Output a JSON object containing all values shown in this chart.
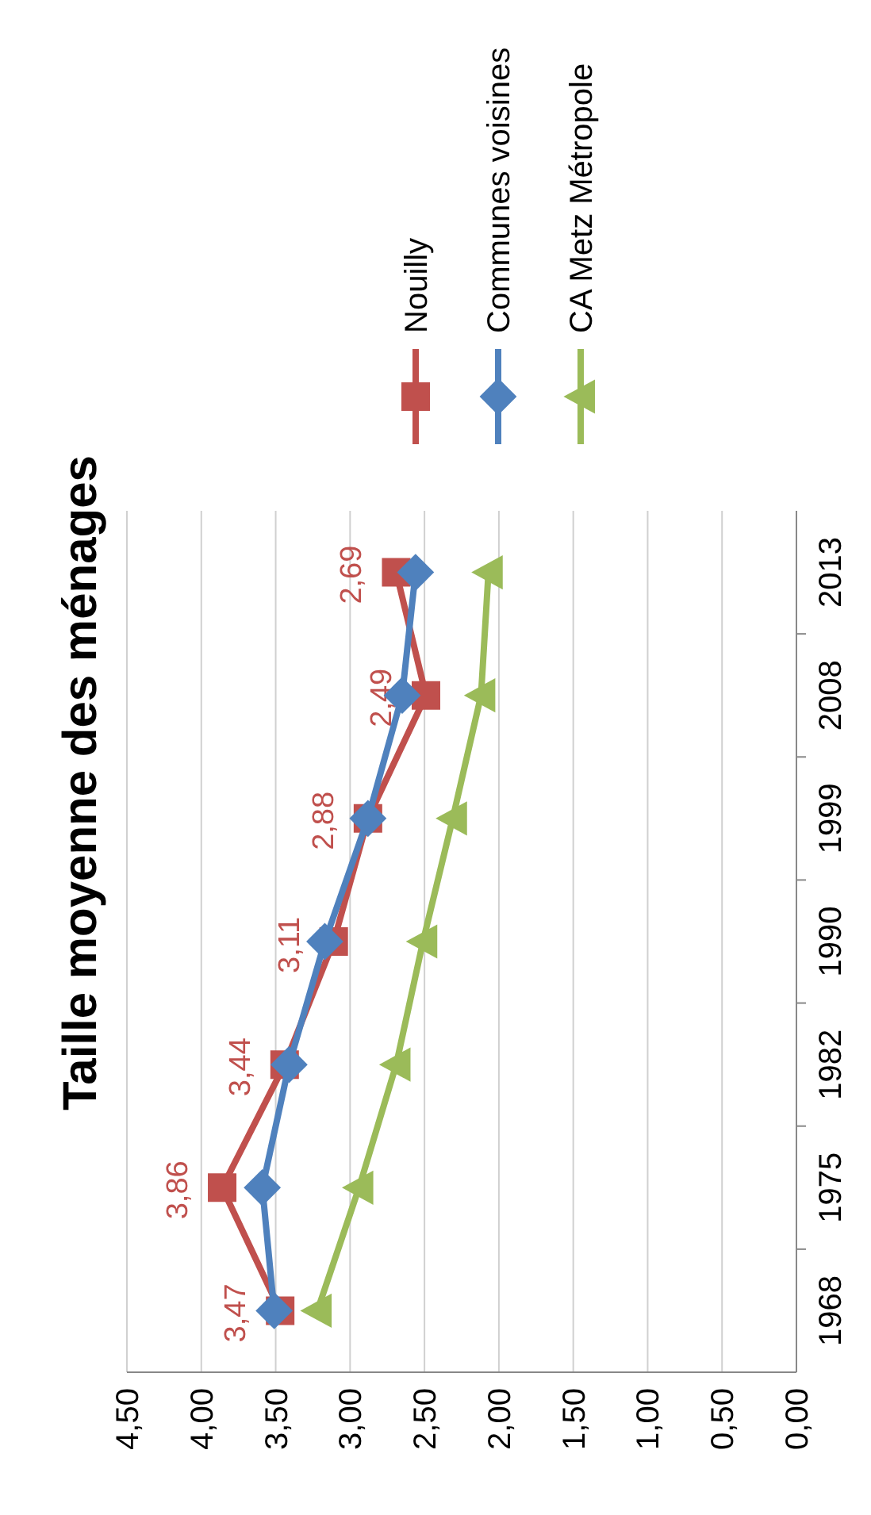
{
  "chart_data": {
    "type": "line",
    "title": "Taille moyenne des ménages",
    "orientation": "horizontal",
    "categories": [
      "2013",
      "2008",
      "1999",
      "1990",
      "1982",
      "1975",
      "1968"
    ],
    "series": [
      {
        "name": "Nouilly",
        "color": "#c0504d",
        "marker": "square",
        "values": [
          2.69,
          2.49,
          2.88,
          3.11,
          3.44,
          3.86,
          3.47
        ],
        "value_labels": [
          "2,69",
          "2,49",
          "2,88",
          "3,11",
          "3,44",
          "3,86",
          "3,47"
        ]
      },
      {
        "name": "Communes voisines",
        "color": "#4f81bd",
        "marker": "diamond",
        "values": [
          2.56,
          2.65,
          2.88,
          3.17,
          3.41,
          3.59,
          3.51
        ]
      },
      {
        "name": "CA Metz Métropole",
        "color": "#9bbb59",
        "marker": "triangle",
        "values": [
          2.07,
          2.12,
          2.31,
          2.51,
          2.69,
          2.94,
          3.22
        ]
      }
    ],
    "xlim": [
      4.5,
      0
    ],
    "xticks": [
      {
        "value": 4.5,
        "label": "4,50"
      },
      {
        "value": 4,
        "label": "4,00"
      },
      {
        "value": 3.5,
        "label": "3,50"
      },
      {
        "value": 3,
        "label": "3,00"
      },
      {
        "value": 2.5,
        "label": "2,50"
      },
      {
        "value": 2,
        "label": "2,00"
      },
      {
        "value": 1.5,
        "label": "1,50"
      },
      {
        "value": 1,
        "label": "1,00"
      },
      {
        "value": 0.5,
        "label": "0,50"
      },
      {
        "value": 0,
        "label": "0,00"
      }
    ],
    "grid": "x",
    "legend": "top",
    "line_style": "solid"
  }
}
